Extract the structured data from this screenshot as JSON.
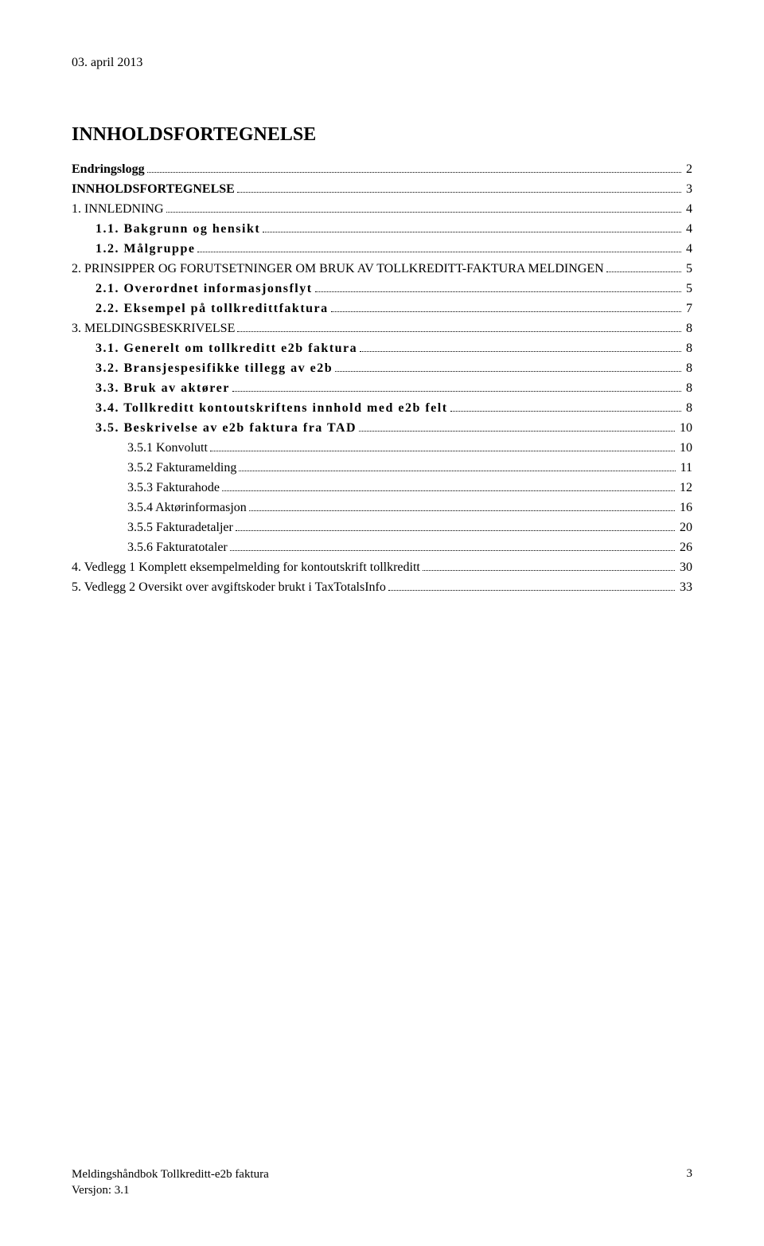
{
  "header": {
    "date": "03. april 2013"
  },
  "title": "INNHOLDSFORTEGNELSE",
  "toc": [
    {
      "label": "Endringslogg",
      "page": "2",
      "indent": 0,
      "bold": true,
      "spaced": false
    },
    {
      "label": "INNHOLDSFORTEGNELSE",
      "page": "3",
      "indent": 0,
      "bold": true,
      "spaced": false
    },
    {
      "label": "1.    INNLEDNING",
      "page": "4",
      "indent": 0,
      "bold": false,
      "spaced": false
    },
    {
      "label": "1.1.   Bakgrunn og hensikt",
      "page": "4",
      "indent": 1,
      "bold": true,
      "spaced": true
    },
    {
      "label": "1.2.   Målgruppe",
      "page": "4",
      "indent": 1,
      "bold": true,
      "spaced": true
    },
    {
      "label": "2.    PRINSIPPER OG FORUTSETNINGER OM BRUK AV TOLLKREDITT-FAKTURA MELDINGEN",
      "page": "5",
      "indent": 0,
      "bold": false,
      "spaced": false
    },
    {
      "label": "2.1.   Overordnet informasjonsflyt",
      "page": "5",
      "indent": 1,
      "bold": true,
      "spaced": true
    },
    {
      "label": "2.2.   Eksempel på tollkredittfaktura",
      "page": "7",
      "indent": 1,
      "bold": true,
      "spaced": true
    },
    {
      "label": "3.    MELDINGSBESKRIVELSE",
      "page": "8",
      "indent": 0,
      "bold": false,
      "spaced": false
    },
    {
      "label": "3.1.   Generelt om tollkreditt e2b faktura",
      "page": "8",
      "indent": 1,
      "bold": true,
      "spaced": true
    },
    {
      "label": "3.2.   Bransjespesifikke tillegg av e2b",
      "page": "8",
      "indent": 1,
      "bold": true,
      "spaced": true
    },
    {
      "label": "3.3.   Bruk av aktører",
      "page": "8",
      "indent": 1,
      "bold": true,
      "spaced": true
    },
    {
      "label": "3.4.   Tollkreditt kontoutskriftens innhold med e2b felt",
      "page": "8",
      "indent": 1,
      "bold": true,
      "spaced": true
    },
    {
      "label": "3.5.   Beskrivelse av e2b faktura fra TAD",
      "page": "10",
      "indent": 1,
      "bold": true,
      "spaced": true
    },
    {
      "label": "3.5.1 Konvolutt",
      "page": "10",
      "indent": 2,
      "bold": false,
      "spaced": false
    },
    {
      "label": "3.5.2 Fakturamelding",
      "page": "11",
      "indent": 2,
      "bold": false,
      "spaced": false
    },
    {
      "label": "3.5.3 Fakturahode",
      "page": "12",
      "indent": 2,
      "bold": false,
      "spaced": false
    },
    {
      "label": "3.5.4 Aktørinformasjon",
      "page": "16",
      "indent": 2,
      "bold": false,
      "spaced": false
    },
    {
      "label": "3.5.5 Fakturadetaljer",
      "page": "20",
      "indent": 2,
      "bold": false,
      "spaced": false
    },
    {
      "label": "3.5.6 Fakturatotaler",
      "page": "26",
      "indent": 2,
      "bold": false,
      "spaced": false
    },
    {
      "label": "4.    Vedlegg 1 Komplett eksempelmelding for kontoutskrift tollkreditt",
      "page": "30",
      "indent": 0,
      "bold": false,
      "spaced": false
    },
    {
      "label": "5.    Vedlegg 2 Oversikt over avgiftskoder brukt i TaxTotalsInfo",
      "page": "33",
      "indent": 0,
      "bold": false,
      "spaced": false
    }
  ],
  "footer": {
    "line1": "Meldingshåndbok Tollkreditt-e2b faktura",
    "line2": "Versjon: 3.1",
    "pageNumber": "3"
  }
}
